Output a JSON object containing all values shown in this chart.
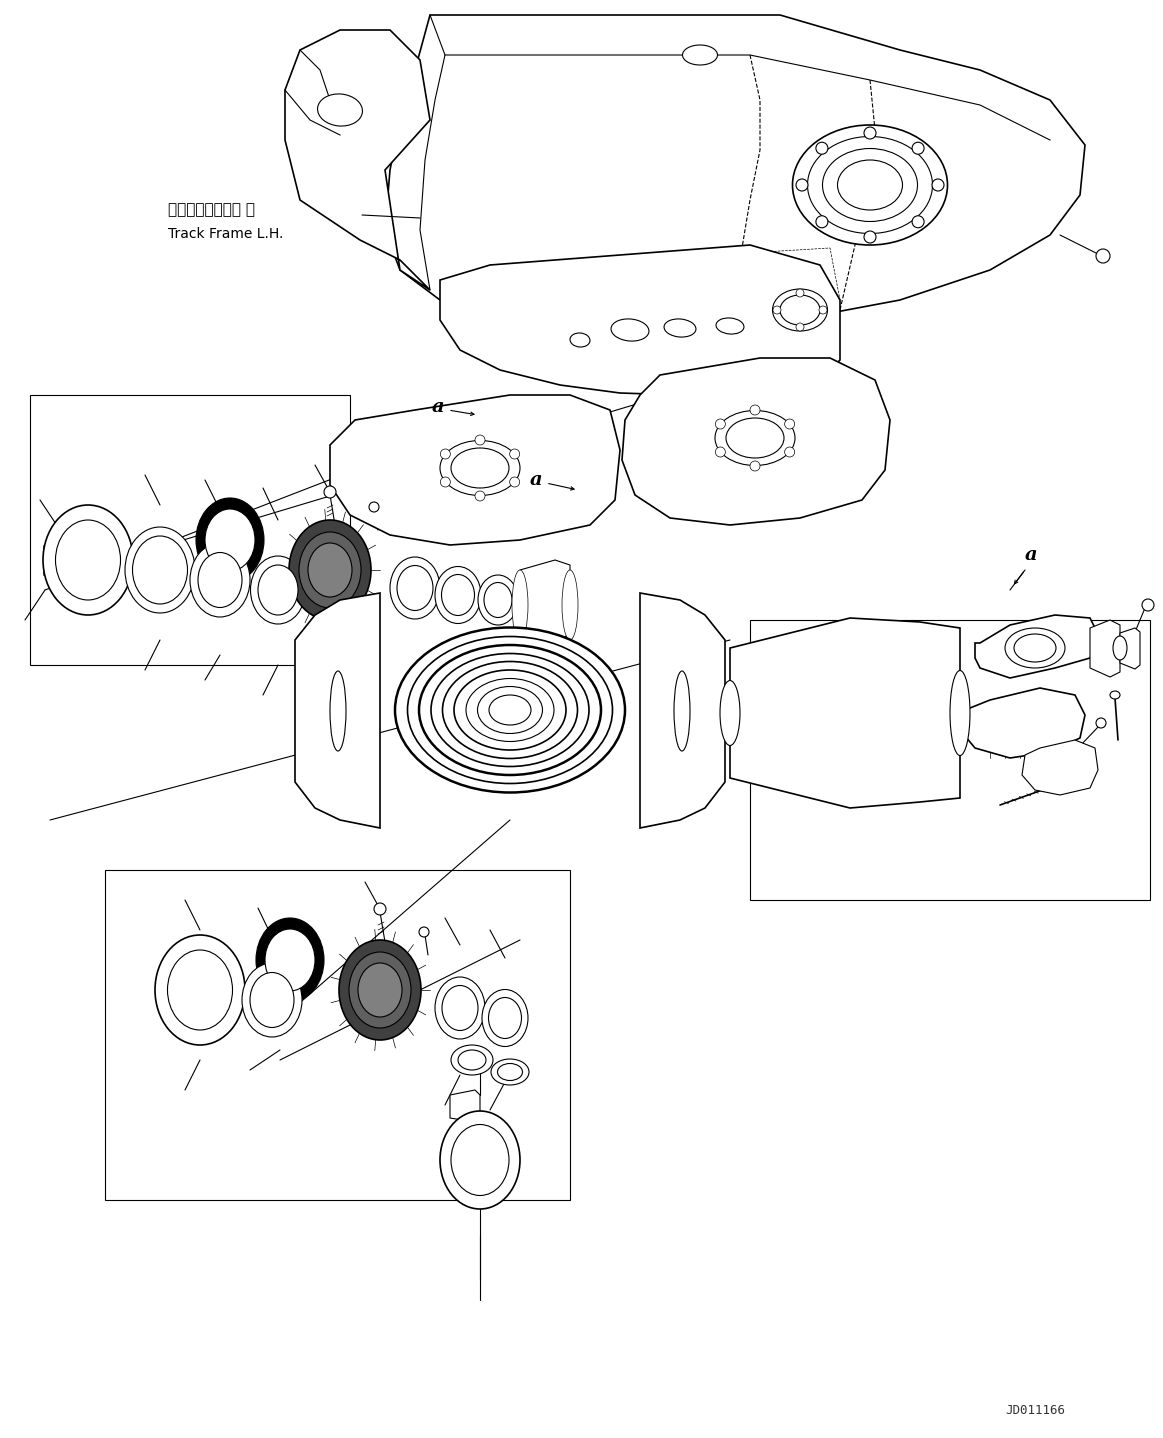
{
  "background_color": "#ffffff",
  "line_color": "#000000",
  "label_japanese": "トラックフレーム 左",
  "label_english": "Track Frame L.H.",
  "watermark": "JD011166",
  "fig_width": 11.63,
  "fig_height": 14.38,
  "dpi": 100
}
